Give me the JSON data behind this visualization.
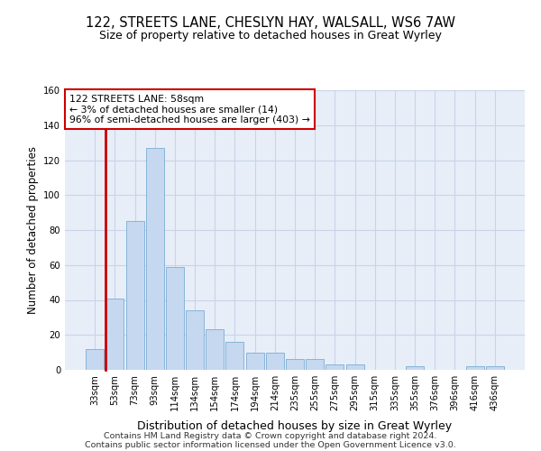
{
  "title1": "122, STREETS LANE, CHESLYN HAY, WALSALL, WS6 7AW",
  "title2": "Size of property relative to detached houses in Great Wyrley",
  "xlabel": "Distribution of detached houses by size in Great Wyrley",
  "ylabel": "Number of detached properties",
  "footnote1": "Contains HM Land Registry data © Crown copyright and database right 2024.",
  "footnote2": "Contains public sector information licensed under the Open Government Licence v3.0.",
  "annotation_line1": "122 STREETS LANE: 58sqm",
  "annotation_line2": "← 3% of detached houses are smaller (14)",
  "annotation_line3": "96% of semi-detached houses are larger (403) →",
  "bar_color": "#c5d8f0",
  "bar_edge_color": "#7aadd4",
  "highlight_color": "#cc0000",
  "categories": [
    "33sqm",
    "53sqm",
    "73sqm",
    "93sqm",
    "114sqm",
    "134sqm",
    "154sqm",
    "174sqm",
    "194sqm",
    "214sqm",
    "235sqm",
    "255sqm",
    "275sqm",
    "295sqm",
    "315sqm",
    "335sqm",
    "355sqm",
    "376sqm",
    "396sqm",
    "416sqm",
    "436sqm"
  ],
  "values": [
    12,
    41,
    85,
    127,
    59,
    34,
    23,
    16,
    10,
    10,
    6,
    6,
    3,
    3,
    0,
    0,
    2,
    0,
    0,
    2,
    2
  ],
  "highlight_bar_index": 1,
  "ylim": [
    0,
    160
  ],
  "yticks": [
    0,
    20,
    40,
    60,
    80,
    100,
    120,
    140,
    160
  ],
  "grid_color": "#c8d4e8",
  "background_color": "#e8eef8",
  "fig_width": 6.0,
  "fig_height": 5.0
}
